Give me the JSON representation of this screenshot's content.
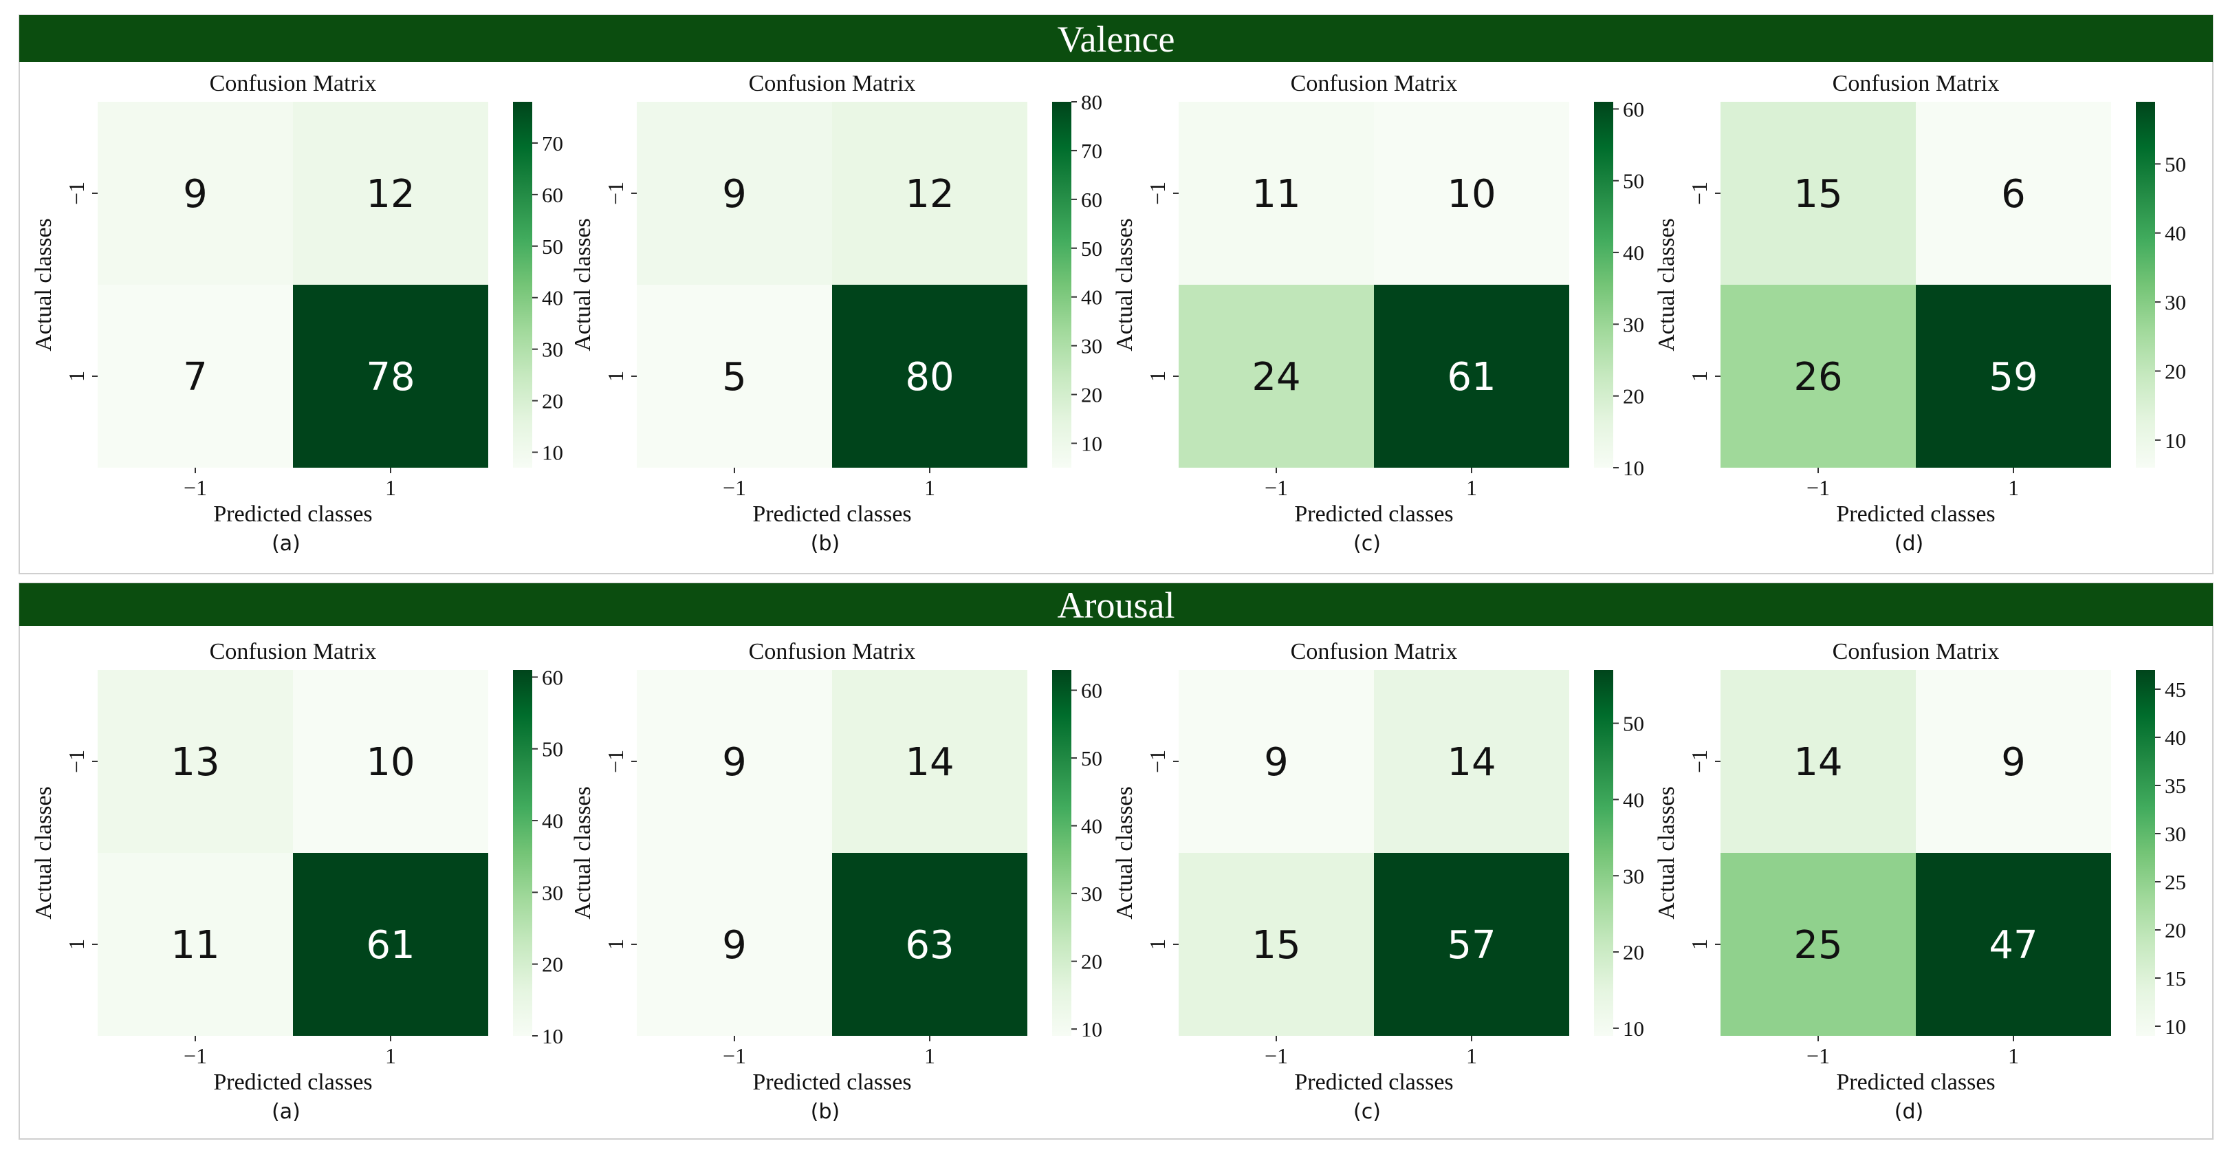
{
  "panels": [
    {
      "header": "Valence",
      "matrices": [
        {
          "title": "Confusion Matrix",
          "tag": "(a)",
          "cbar_ticks": [
            10,
            20,
            30,
            40,
            50,
            60,
            70
          ]
        },
        {
          "title": "Confusion Matrix",
          "tag": "(b)",
          "cbar_ticks": [
            10,
            20,
            30,
            40,
            50,
            60,
            70,
            80
          ]
        },
        {
          "title": "Confusion Matrix",
          "tag": "(c)",
          "cbar_ticks": [
            10,
            20,
            30,
            40,
            50,
            60
          ]
        },
        {
          "title": "Confusion Matrix",
          "tag": "(d)",
          "cbar_ticks": [
            10,
            20,
            30,
            40,
            50
          ]
        }
      ]
    },
    {
      "header": "Arousal",
      "matrices": [
        {
          "title": "Confusion Matrix",
          "tag": "(a)",
          "cbar_ticks": [
            10,
            20,
            30,
            40,
            50,
            60
          ]
        },
        {
          "title": "Confusion Matrix",
          "tag": "(b)",
          "cbar_ticks": [
            10,
            20,
            30,
            40,
            50,
            60
          ]
        },
        {
          "title": "Confusion Matrix",
          "tag": "(c)",
          "cbar_ticks": [
            10,
            20,
            30,
            40,
            50
          ]
        },
        {
          "title": "Confusion Matrix",
          "tag": "(d)",
          "cbar_ticks": [
            10,
            15,
            20,
            25,
            30,
            35,
            40,
            45
          ]
        }
      ]
    }
  ],
  "colors": {
    "header_bg": "#0b4d0f",
    "header_text": "#ffffff",
    "cmap": [
      "#f7fcf5",
      "#e5f5e0",
      "#c7e9c0",
      "#a1d99b",
      "#74c476",
      "#41ab5d",
      "#238b45",
      "#006d2c",
      "#00441b"
    ]
  },
  "chart_data": [
    {
      "panel": "Valence",
      "tag": "(a)",
      "type": "heatmap",
      "title": "Confusion Matrix",
      "xlabel": "Predicted classes",
      "ylabel": "Actual classes",
      "x_categories": [
        "−1",
        "1"
      ],
      "y_categories": [
        "−1",
        "1"
      ],
      "values": [
        [
          9,
          12
        ],
        [
          7,
          78
        ]
      ],
      "colorbar_range": [
        7,
        78
      ]
    },
    {
      "panel": "Valence",
      "tag": "(b)",
      "type": "heatmap",
      "title": "Confusion Matrix",
      "xlabel": "Predicted classes",
      "ylabel": "Actual classes",
      "x_categories": [
        "−1",
        "1"
      ],
      "y_categories": [
        "−1",
        "1"
      ],
      "values": [
        [
          9,
          12
        ],
        [
          5,
          80
        ]
      ],
      "colorbar_range": [
        5,
        80
      ]
    },
    {
      "panel": "Valence",
      "tag": "(c)",
      "type": "heatmap",
      "title": "Confusion Matrix",
      "xlabel": "Predicted classes",
      "ylabel": "Actual classes",
      "x_categories": [
        "−1",
        "1"
      ],
      "y_categories": [
        "−1",
        "1"
      ],
      "values": [
        [
          11,
          10
        ],
        [
          24,
          61
        ]
      ],
      "colorbar_range": [
        10,
        61
      ]
    },
    {
      "panel": "Valence",
      "tag": "(d)",
      "type": "heatmap",
      "title": "Confusion Matrix",
      "xlabel": "Predicted classes",
      "ylabel": "Actual classes",
      "x_categories": [
        "−1",
        "1"
      ],
      "y_categories": [
        "−1",
        "1"
      ],
      "values": [
        [
          15,
          6
        ],
        [
          26,
          59
        ]
      ],
      "colorbar_range": [
        6,
        59
      ]
    },
    {
      "panel": "Arousal",
      "tag": "(a)",
      "type": "heatmap",
      "title": "Confusion Matrix",
      "xlabel": "Predicted classes",
      "ylabel": "Actual classes",
      "x_categories": [
        "−1",
        "1"
      ],
      "y_categories": [
        "−1",
        "1"
      ],
      "values": [
        [
          13,
          10
        ],
        [
          11,
          61
        ]
      ],
      "colorbar_range": [
        10,
        61
      ]
    },
    {
      "panel": "Arousal",
      "tag": "(b)",
      "type": "heatmap",
      "title": "Confusion Matrix",
      "xlabel": "Predicted classes",
      "ylabel": "Actual classes",
      "x_categories": [
        "−1",
        "1"
      ],
      "y_categories": [
        "−1",
        "1"
      ],
      "values": [
        [
          9,
          14
        ],
        [
          9,
          63
        ]
      ],
      "colorbar_range": [
        9,
        63
      ]
    },
    {
      "panel": "Arousal",
      "tag": "(c)",
      "type": "heatmap",
      "title": "Confusion Matrix",
      "xlabel": "Predicted classes",
      "ylabel": "Actual classes",
      "x_categories": [
        "−1",
        "1"
      ],
      "y_categories": [
        "−1",
        "1"
      ],
      "values": [
        [
          9,
          14
        ],
        [
          15,
          57
        ]
      ],
      "colorbar_range": [
        9,
        57
      ]
    },
    {
      "panel": "Arousal",
      "tag": "(d)",
      "type": "heatmap",
      "title": "Confusion Matrix",
      "xlabel": "Predicted classes",
      "ylabel": "Actual classes",
      "x_categories": [
        "−1",
        "1"
      ],
      "y_categories": [
        "−1",
        "1"
      ],
      "values": [
        [
          14,
          9
        ],
        [
          25,
          47
        ]
      ],
      "colorbar_range": [
        9,
        47
      ]
    }
  ]
}
